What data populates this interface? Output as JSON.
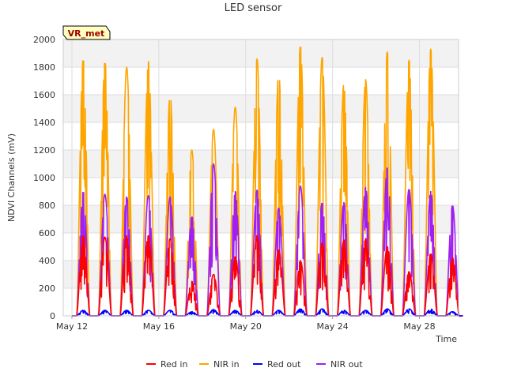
{
  "chart_data": {
    "type": "line",
    "title": "LED sensor",
    "xlabel": "Time",
    "ylabel": "NDVI Channels (mV)",
    "ylim": [
      0,
      2000
    ],
    "yticks": [
      0,
      200,
      400,
      600,
      800,
      1000,
      1200,
      1400,
      1600,
      1800,
      2000
    ],
    "xlim_days": [
      11.6,
      29.8
    ],
    "xticks": [
      {
        "day": 12,
        "label": "May 12"
      },
      {
        "day": 16,
        "label": "May 16"
      },
      {
        "day": 20,
        "label": "May 20"
      },
      {
        "day": 24,
        "label": "May 24"
      },
      {
        "day": 28,
        "label": "May 28"
      }
    ],
    "grid": true,
    "station_badge": "VR_met",
    "days": [
      12,
      13,
      14,
      15,
      16,
      17,
      18,
      19,
      20,
      21,
      22,
      23,
      24,
      25,
      26,
      27,
      28,
      29
    ],
    "series": [
      {
        "name": "Red in",
        "color": "#ff0000",
        "daily_peak": [
          580,
          570,
          580,
          580,
          560,
          250,
          300,
          430,
          580,
          480,
          400,
          530,
          550,
          560,
          500,
          320,
          450,
          420
        ]
      },
      {
        "name": "NIR in",
        "color": "#ffa500",
        "daily_peak": [
          1860,
          1840,
          1800,
          1840,
          1610,
          1200,
          1350,
          1510,
          1860,
          1760,
          1960,
          1870,
          1680,
          1710,
          1910,
          1850,
          1930,
          0
        ]
      },
      {
        "name": "Red out",
        "color": "#0000ff",
        "daily_peak": [
          40,
          40,
          40,
          40,
          40,
          30,
          45,
          40,
          40,
          40,
          50,
          50,
          40,
          40,
          50,
          50,
          50,
          30
        ]
      },
      {
        "name": "NIR out",
        "color": "#a020f0",
        "daily_peak": [
          900,
          880,
          860,
          870,
          860,
          720,
          1100,
          900,
          910,
          780,
          940,
          820,
          820,
          930,
          1070,
          920,
          900,
          800
        ]
      }
    ]
  }
}
